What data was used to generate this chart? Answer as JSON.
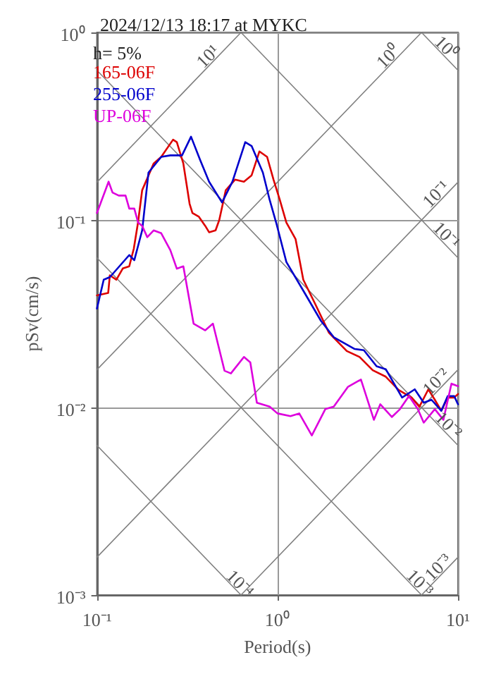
{
  "chart_data": {
    "type": "line",
    "title": "2024/12/13 18:17 at MYKC",
    "xlabel": "Period(s)",
    "ylabel": "pSv(cm/s)",
    "log": "xy",
    "grid": true,
    "legend": "top left",
    "marker": "none",
    "xlim": [
      0.1,
      10
    ],
    "ylim": [
      0.001,
      1
    ],
    "xticks": [
      {
        "value": 0.1,
        "label": "10⁻¹"
      },
      {
        "value": 1,
        "label": "10⁰"
      },
      {
        "value": 10,
        "label": "10¹"
      }
    ],
    "yticks": [
      {
        "value": 0.001,
        "label": "10⁻³"
      },
      {
        "value": 0.01,
        "label": "10⁻²"
      },
      {
        "value": 0.1,
        "label": "10⁻¹"
      },
      {
        "value": 1,
        "label": "10⁰"
      }
    ],
    "annotations": [
      "h= 5%",
      {
        "text": "10¹",
        "x": 0.44,
        "y": 0.7
      },
      {
        "text": "10⁰",
        "x": 4.4,
        "y": 0.7
      },
      {
        "text": "10⁰",
        "x": 8.08,
        "y": 0.778
      },
      {
        "text": "10⁻¹",
        "x": 8.08,
        "y": 0.129
      },
      {
        "text": "10⁻¹",
        "x": 8.08,
        "y": 0.0778
      },
      {
        "text": "10⁻²",
        "x": 8.08,
        "y": 0.0129
      },
      {
        "text": "10⁻²",
        "x": 8.3,
        "y": 0.00757
      },
      {
        "text": "10⁻³",
        "x": 5.76,
        "y": 0.00109
      },
      {
        "text": "10⁻³",
        "x": 8.3,
        "y": 0.00132
      },
      {
        "text": "10⁻⁴",
        "x": 0.58,
        "y": 0.00108
      }
    ],
    "series": [
      {
        "color": "#808080",
        "x": [
          0.1,
          0.628
        ],
        "values": [
          0.159,
          1
        ]
      },
      {
        "color": "#808080",
        "x": [
          0.1,
          6.28
        ],
        "values": [
          0.0159,
          1
        ]
      },
      {
        "color": "#808080",
        "x": [
          0.1,
          10
        ],
        "values": [
          0.00159,
          0.159
        ]
      },
      {
        "color": "#808080",
        "x": [
          0.628,
          10
        ],
        "values": [
          0.001,
          0.0159
        ]
      },
      {
        "color": "#808080",
        "x": [
          6.28,
          10
        ],
        "values": [
          0.001,
          0.00159
        ]
      },
      {
        "color": "#808080",
        "x": [
          6.28,
          10
        ],
        "values": [
          1,
          0.628
        ]
      },
      {
        "color": "#808080",
        "x": [
          0.628,
          10
        ],
        "values": [
          1,
          0.0628
        ]
      },
      {
        "color": "#808080",
        "x": [
          0.1,
          10
        ],
        "values": [
          0.628,
          0.00628
        ]
      },
      {
        "color": "#808080",
        "x": [
          0.1,
          6.28
        ],
        "values": [
          0.0628,
          0.001
        ]
      },
      {
        "color": "#808080",
        "x": [
          0.1,
          0.628
        ],
        "values": [
          0.00628,
          0.001
        ]
      },
      {
        "name": "165-06F",
        "color": "#dd0000",
        "x": [
          0.1,
          0.1154,
          0.1179,
          0.128,
          0.139,
          0.151,
          0.16,
          0.169,
          0.178,
          0.206,
          0.227,
          0.264,
          0.277,
          0.301,
          0.326,
          0.338,
          0.367,
          0.398,
          0.418,
          0.454,
          0.476,
          0.517,
          0.582,
          0.652,
          0.719,
          0.794,
          0.876,
          0.951,
          1.03,
          1.12,
          1.26,
          1.39,
          1.61,
          1.93,
          2.42,
          2.85,
          3.37,
          3.98,
          4.69,
          5.53,
          6.11,
          6.85,
          7.44,
          8.08,
          8.77,
          9.53,
          10
        ],
        "values": [
          0.0396,
          0.0408,
          0.0507,
          0.048,
          0.0551,
          0.0566,
          0.0703,
          0.0975,
          0.144,
          0.2,
          0.217,
          0.268,
          0.26,
          0.2,
          0.122,
          0.109,
          0.104,
          0.093,
          0.086,
          0.088,
          0.1,
          0.144,
          0.164,
          0.16,
          0.173,
          0.232,
          0.217,
          0.164,
          0.128,
          0.097,
          0.079,
          0.048,
          0.036,
          0.025,
          0.02,
          0.0186,
          0.0158,
          0.0146,
          0.0124,
          0.0113,
          0.0101,
          0.0125,
          0.011,
          0.0096,
          0.0113,
          0.0113,
          0.0118
        ]
      },
      {
        "name": "255-06F",
        "color": "#0000cc",
        "x": [
          0.1,
          0.109,
          0.118,
          0.151,
          0.161,
          0.178,
          0.193,
          0.227,
          0.255,
          0.296,
          0.332,
          0.372,
          0.418,
          0.493,
          0.563,
          0.663,
          0.719,
          0.83,
          0.905,
          0.983,
          1.12,
          1.39,
          1.74,
          2.05,
          2.68,
          3.01,
          3.54,
          3.98,
          4.9,
          5.76,
          6.46,
          7.13,
          8.08,
          8.77,
          9.53,
          10
        ],
        "values": [
          0.0337,
          0.048,
          0.0496,
          0.065,
          0.061,
          0.088,
          0.179,
          0.217,
          0.221,
          0.221,
          0.278,
          0.21,
          0.16,
          0.124,
          0.16,
          0.26,
          0.248,
          0.179,
          0.128,
          0.097,
          0.0597,
          0.042,
          0.029,
          0.0237,
          0.0205,
          0.0202,
          0.0166,
          0.016,
          0.0113,
          0.0125,
          0.0106,
          0.011,
          0.0096,
          0.0115,
          0.0115,
          0.0104
        ]
      },
      {
        "name": "UP-06F",
        "color": "#dd00dd",
        "x": [
          0.1,
          0.116,
          0.122,
          0.132,
          0.144,
          0.151,
          0.161,
          0.169,
          0.178,
          0.19,
          0.206,
          0.227,
          0.255,
          0.277,
          0.301,
          0.343,
          0.398,
          0.439,
          0.509,
          0.552,
          0.652,
          0.707,
          0.769,
          0.905,
          1.0,
          1.18,
          1.32,
          1.55,
          1.84,
          2.05,
          2.46,
          2.9,
          3.42,
          3.71,
          4.3,
          4.77,
          5.35,
          5.99,
          6.46,
          7.44,
          8.3,
          9.2,
          10
        ],
        "values": [
          0.109,
          0.16,
          0.14,
          0.135,
          0.135,
          0.115,
          0.115,
          0.097,
          0.093,
          0.081,
          0.088,
          0.085,
          0.069,
          0.055,
          0.0566,
          0.028,
          0.0258,
          0.028,
          0.0157,
          0.0152,
          0.0186,
          0.0174,
          0.0106,
          0.0101,
          0.0093,
          0.009,
          0.0093,
          0.0071,
          0.0098,
          0.0101,
          0.0129,
          0.0141,
          0.0086,
          0.0104,
          0.0089,
          0.0098,
          0.0115,
          0.0098,
          0.0083,
          0.0098,
          0.0086,
          0.0134,
          0.013
        ]
      }
    ]
  }
}
